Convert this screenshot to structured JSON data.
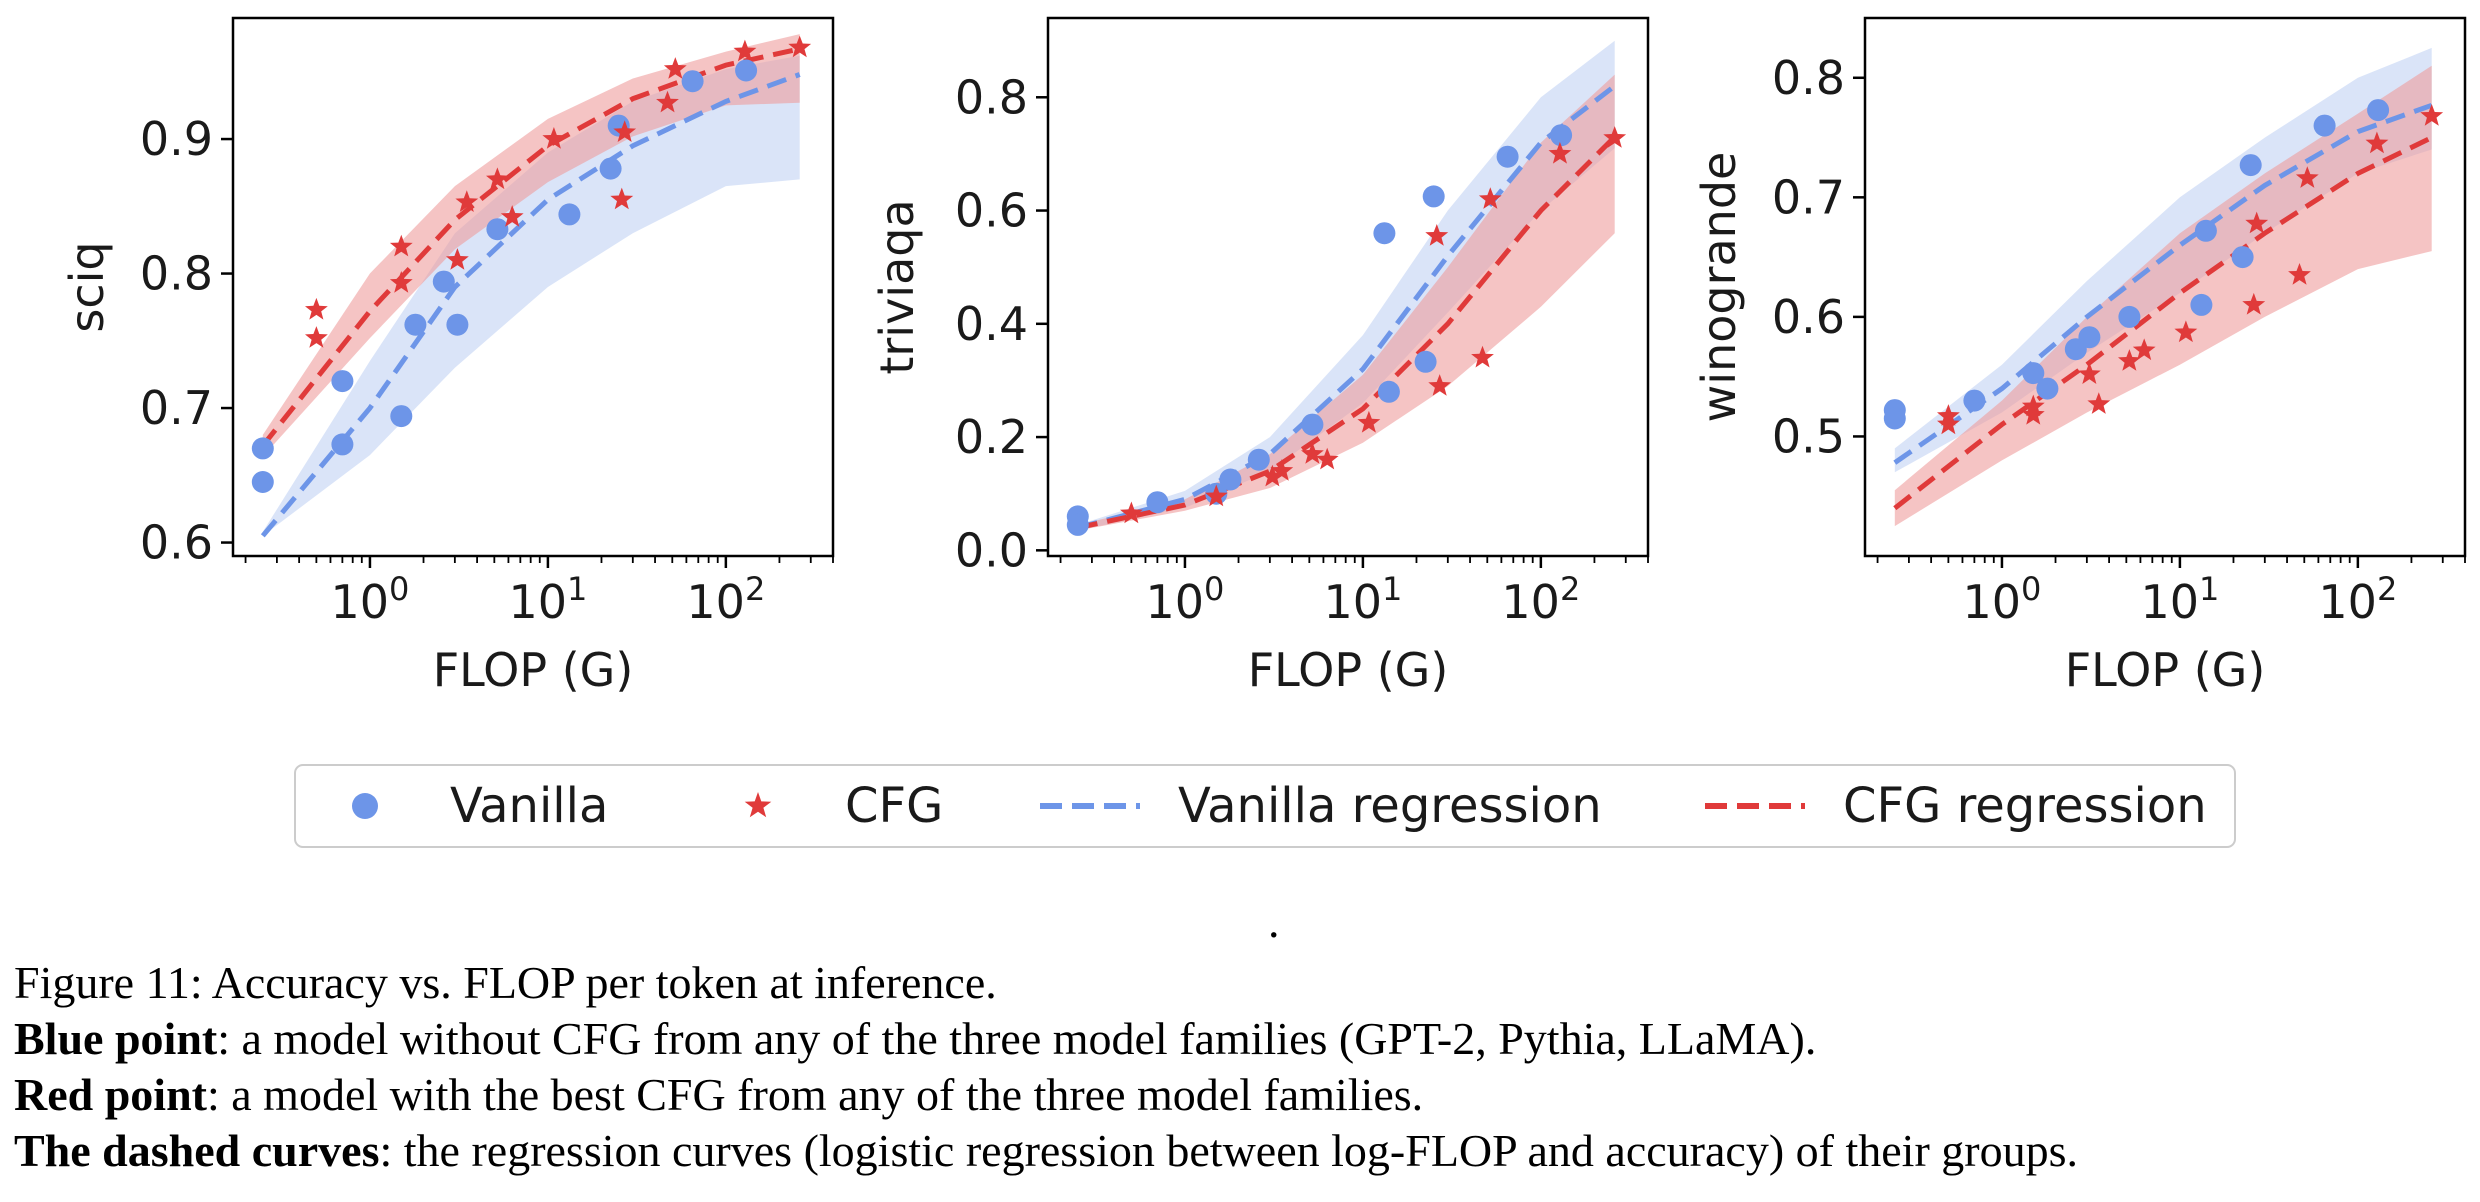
{
  "colors": {
    "vanilla": "#6d95e8",
    "cfg": "#e03a3a",
    "vanilla_band": "#bccdf2",
    "cfg_band": "#ee9d9d"
  },
  "chart_data": [
    {
      "type": "scatter",
      "xlabel": "FLOP (G)",
      "ylabel": "sciq",
      "xscale": "log",
      "xlim": [
        0.17,
        400
      ],
      "ylim": [
        0.59,
        0.99
      ],
      "xticks": [
        1,
        10,
        100
      ],
      "xtick_labels": [
        "10^0",
        "10^1",
        "10^2"
      ],
      "yticks": [
        0.6,
        0.7,
        0.8,
        0.9
      ],
      "ytick_labels": [
        "0.6",
        "0.7",
        "0.8",
        "0.9"
      ],
      "series": [
        {
          "name": "Vanilla",
          "marker": "circle",
          "x": [
            0.25,
            0.25,
            0.7,
            0.7,
            1.5,
            1.8,
            2.6,
            3.1,
            5.2,
            13.2,
            22.5,
            25,
            65,
            130
          ],
          "y": [
            0.67,
            0.645,
            0.72,
            0.673,
            0.694,
            0.762,
            0.794,
            0.762,
            0.833,
            0.844,
            0.878,
            0.91,
            0.943,
            0.951
          ]
        },
        {
          "name": "CFG",
          "marker": "star",
          "x": [
            0.5,
            0.5,
            1.5,
            1.5,
            3.1,
            3.5,
            5.2,
            6.3,
            10.8,
            26,
            27,
            47,
            52,
            128,
            260
          ],
          "y": [
            0.773,
            0.752,
            0.82,
            0.793,
            0.81,
            0.853,
            0.87,
            0.842,
            0.9,
            0.855,
            0.905,
            0.927,
            0.952,
            0.965,
            0.968
          ]
        },
        {
          "name": "Vanilla regression",
          "style": "dashed",
          "x": [
            0.25,
            1,
            3,
            10,
            30,
            100,
            260
          ],
          "y": [
            0.605,
            0.7,
            0.79,
            0.855,
            0.895,
            0.928,
            0.948
          ]
        },
        {
          "name": "CFG regression",
          "style": "dashed",
          "x": [
            0.25,
            1,
            3,
            10,
            30,
            100,
            260
          ],
          "y": [
            0.672,
            0.772,
            0.84,
            0.895,
            0.93,
            0.955,
            0.967
          ]
        }
      ],
      "bands": [
        {
          "series": "Vanilla regression",
          "x": [
            0.25,
            1,
            3,
            10,
            30,
            100,
            260
          ],
          "lower": [
            0.605,
            0.665,
            0.73,
            0.79,
            0.83,
            0.865,
            0.87
          ],
          "upper": [
            0.608,
            0.735,
            0.83,
            0.89,
            0.928,
            0.952,
            0.962
          ]
        },
        {
          "series": "CFG regression",
          "x": [
            0.25,
            1,
            3,
            10,
            30,
            100,
            260
          ],
          "lower": [
            0.664,
            0.752,
            0.818,
            0.868,
            0.902,
            0.925,
            0.927
          ],
          "upper": [
            0.68,
            0.8,
            0.865,
            0.915,
            0.945,
            0.965,
            0.978
          ]
        }
      ]
    },
    {
      "type": "scatter",
      "xlabel": "FLOP (G)",
      "ylabel": "triviaqa",
      "xscale": "log",
      "xlim": [
        0.17,
        400
      ],
      "ylim": [
        -0.01,
        0.94
      ],
      "xticks": [
        1,
        10,
        100
      ],
      "xtick_labels": [
        "10^0",
        "10^1",
        "10^2"
      ],
      "yticks": [
        0,
        0.2,
        0.4,
        0.6,
        0.8
      ],
      "ytick_labels": [
        "0.0",
        "0.2",
        "0.4",
        "0.6",
        "0.8"
      ],
      "series": [
        {
          "name": "Vanilla",
          "marker": "circle",
          "x": [
            0.25,
            0.25,
            0.7,
            1.5,
            1.8,
            2.6,
            5.2,
            13.2,
            14,
            22.5,
            25,
            65,
            130
          ],
          "y": [
            0.06,
            0.045,
            0.085,
            0.1,
            0.125,
            0.16,
            0.222,
            0.56,
            0.28,
            0.333,
            0.625,
            0.695,
            0.733
          ]
        },
        {
          "name": "CFG",
          "marker": "star",
          "x": [
            0.5,
            1.5,
            3.1,
            3.5,
            5.2,
            6.3,
            10.8,
            26,
            27,
            47,
            52,
            128,
            260
          ],
          "y": [
            0.065,
            0.095,
            0.13,
            0.14,
            0.17,
            0.16,
            0.225,
            0.555,
            0.29,
            0.34,
            0.62,
            0.7,
            0.728
          ]
        },
        {
          "name": "Vanilla regression",
          "style": "dashed",
          "x": [
            0.25,
            1,
            3,
            10,
            30,
            100,
            260
          ],
          "y": [
            0.04,
            0.09,
            0.17,
            0.32,
            0.52,
            0.72,
            0.82
          ]
        },
        {
          "name": "CFG regression",
          "style": "dashed",
          "x": [
            0.25,
            1,
            3,
            10,
            30,
            100,
            260
          ],
          "y": [
            0.04,
            0.08,
            0.14,
            0.25,
            0.4,
            0.6,
            0.73
          ]
        }
      ],
      "bands": [
        {
          "series": "Vanilla regression",
          "x": [
            0.25,
            1,
            3,
            10,
            30,
            100,
            260
          ],
          "lower": [
            0.035,
            0.075,
            0.14,
            0.26,
            0.42,
            0.6,
            0.71
          ],
          "upper": [
            0.045,
            0.105,
            0.2,
            0.38,
            0.6,
            0.8,
            0.9
          ]
        },
        {
          "series": "CFG regression",
          "x": [
            0.25,
            1,
            3,
            10,
            30,
            100,
            260
          ],
          "lower": [
            0.035,
            0.07,
            0.11,
            0.19,
            0.29,
            0.43,
            0.56
          ],
          "upper": [
            0.045,
            0.09,
            0.17,
            0.31,
            0.5,
            0.72,
            0.84
          ]
        }
      ]
    },
    {
      "type": "scatter",
      "xlabel": "FLOP (G)",
      "ylabel": "winogrande",
      "xscale": "log",
      "xlim": [
        0.17,
        400
      ],
      "ylim": [
        0.4,
        0.85
      ],
      "xticks": [
        1,
        10,
        100
      ],
      "xtick_labels": [
        "10^0",
        "10^1",
        "10^2"
      ],
      "yticks": [
        0.5,
        0.6,
        0.7,
        0.8
      ],
      "ytick_labels": [
        "0.5",
        "0.6",
        "0.7",
        "0.8"
      ],
      "series": [
        {
          "name": "Vanilla",
          "marker": "circle",
          "x": [
            0.25,
            0.25,
            0.7,
            1.5,
            1.8,
            2.6,
            3.1,
            5.2,
            13.2,
            14,
            22.5,
            25,
            65,
            130
          ],
          "y": [
            0.522,
            0.515,
            0.53,
            0.553,
            0.54,
            0.573,
            0.583,
            0.6,
            0.61,
            0.672,
            0.65,
            0.727,
            0.76,
            0.773
          ]
        },
        {
          "name": "CFG",
          "marker": "star",
          "x": [
            0.5,
            0.5,
            1.5,
            1.5,
            3.1,
            3.5,
            5.2,
            6.3,
            10.8,
            26,
            27,
            47,
            52,
            128,
            260
          ],
          "y": [
            0.517,
            0.51,
            0.525,
            0.518,
            0.552,
            0.527,
            0.563,
            0.572,
            0.587,
            0.61,
            0.678,
            0.635,
            0.716,
            0.745,
            0.768
          ]
        },
        {
          "name": "Vanilla regression",
          "style": "dashed",
          "x": [
            0.25,
            1,
            3,
            10,
            30,
            100,
            260
          ],
          "y": [
            0.478,
            0.54,
            0.6,
            0.66,
            0.71,
            0.755,
            0.777
          ]
        },
        {
          "name": "CFG regression",
          "style": "dashed",
          "x": [
            0.25,
            1,
            3,
            10,
            30,
            100,
            260
          ],
          "y": [
            0.44,
            0.51,
            0.56,
            0.62,
            0.67,
            0.72,
            0.75
          ]
        }
      ],
      "bands": [
        {
          "series": "Vanilla regression",
          "x": [
            0.25,
            1,
            3,
            10,
            30,
            100,
            260
          ],
          "lower": [
            0.47,
            0.52,
            0.57,
            0.62,
            0.67,
            0.72,
            0.74
          ],
          "upper": [
            0.49,
            0.56,
            0.63,
            0.7,
            0.75,
            0.8,
            0.825
          ]
        },
        {
          "series": "CFG regression",
          "x": [
            0.25,
            1,
            3,
            10,
            30,
            100,
            260
          ],
          "lower": [
            0.425,
            0.48,
            0.52,
            0.56,
            0.6,
            0.64,
            0.655
          ],
          "upper": [
            0.455,
            0.53,
            0.6,
            0.67,
            0.72,
            0.77,
            0.81
          ]
        }
      ]
    }
  ],
  "legend": {
    "placement": "bottom-center",
    "entries": [
      "Vanilla",
      "CFG",
      "Vanilla regression",
      "CFG regression"
    ]
  },
  "separator_mark": ".",
  "caption": {
    "line1": "Figure 11: Accuracy vs. FLOP per token at inference.",
    "line2_bold": "Blue point",
    "line2_rest": ": a model without CFG from any of the three model families (GPT-2, Pythia, LLaMA).",
    "line3_bold": "Red point",
    "line3_rest": ": a model with the best CFG from any of the three model families.",
    "line4_bold": "The dashed curves",
    "line4_rest": ": the regression curves (logistic regression between log-FLOP and accuracy) of their groups."
  }
}
